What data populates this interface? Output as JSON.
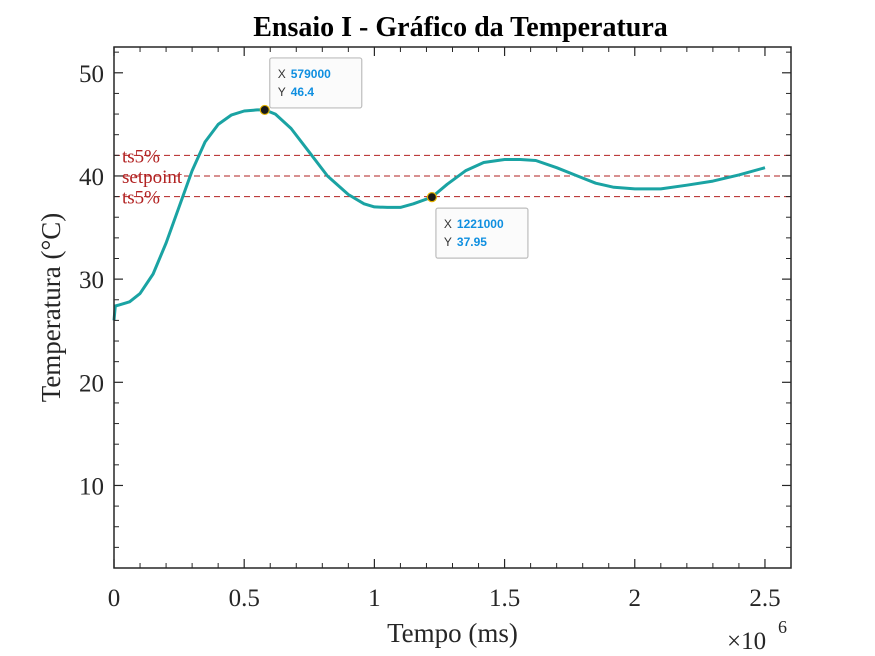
{
  "chart_data": {
    "type": "line",
    "title": "Ensaio I - Gráfico da Temperatura",
    "xlabel": "Tempo (ms)",
    "ylabel": "Temperatura (°C)",
    "x_exponent_label": "×10",
    "x_exponent": "6",
    "xlim": [
      0,
      2600000
    ],
    "ylim": [
      2,
      52.5
    ],
    "x_ticks": [
      0,
      500000,
      1000000,
      1500000,
      2000000,
      2500000
    ],
    "x_tick_labels": [
      "0",
      "0.5",
      "1",
      "1.5",
      "2",
      "2.5"
    ],
    "y_ticks": [
      10,
      20,
      30,
      40,
      50
    ],
    "y_tick_labels": [
      "10",
      "20",
      "30",
      "40",
      "50"
    ],
    "grid": false,
    "series": [
      {
        "color": "#1aa3a3",
        "x": [
          0,
          5000,
          20000,
          60000,
          100000,
          150000,
          200000,
          250000,
          300000,
          350000,
          400000,
          450000,
          500000,
          550000,
          579000,
          620000,
          680000,
          750000,
          820000,
          900000,
          960000,
          1000000,
          1050000,
          1100000,
          1150000,
          1221000,
          1280000,
          1350000,
          1420000,
          1500000,
          1560000,
          1620000,
          1700000,
          1780000,
          1850000,
          1920000,
          2000000,
          2100000,
          2200000,
          2300000,
          2400000,
          2500000
        ],
        "y": [
          26,
          27.4,
          27.5,
          27.8,
          28.6,
          30.5,
          33.5,
          37,
          40.5,
          43.3,
          45,
          45.9,
          46.3,
          46.4,
          46.4,
          46,
          44.6,
          42.3,
          40,
          38.2,
          37.3,
          37,
          36.95,
          36.95,
          37.3,
          37.95,
          39.2,
          40.5,
          41.3,
          41.6,
          41.6,
          41.5,
          40.8,
          40,
          39.3,
          38.9,
          38.75,
          38.75,
          39.1,
          39.5,
          40.1,
          40.8
        ]
      }
    ],
    "reference_lines": [
      {
        "label": "ts5%",
        "y": 42,
        "color": "#b22222"
      },
      {
        "label": "setpoint",
        "y": 40,
        "color": "#b22222"
      },
      {
        "label": "ts5%",
        "y": 38,
        "color": "#b22222"
      }
    ],
    "datatips": [
      {
        "x_label": "X",
        "y_label": "Y",
        "x": 579000,
        "y": 46.4,
        "x_text": "579000",
        "y_text": "46.4",
        "placement": "top-right"
      },
      {
        "x_label": "X",
        "y_label": "Y",
        "x": 1221000,
        "y": 37.95,
        "x_text": "1221000",
        "y_text": "37.95",
        "placement": "bottom-right"
      }
    ]
  }
}
